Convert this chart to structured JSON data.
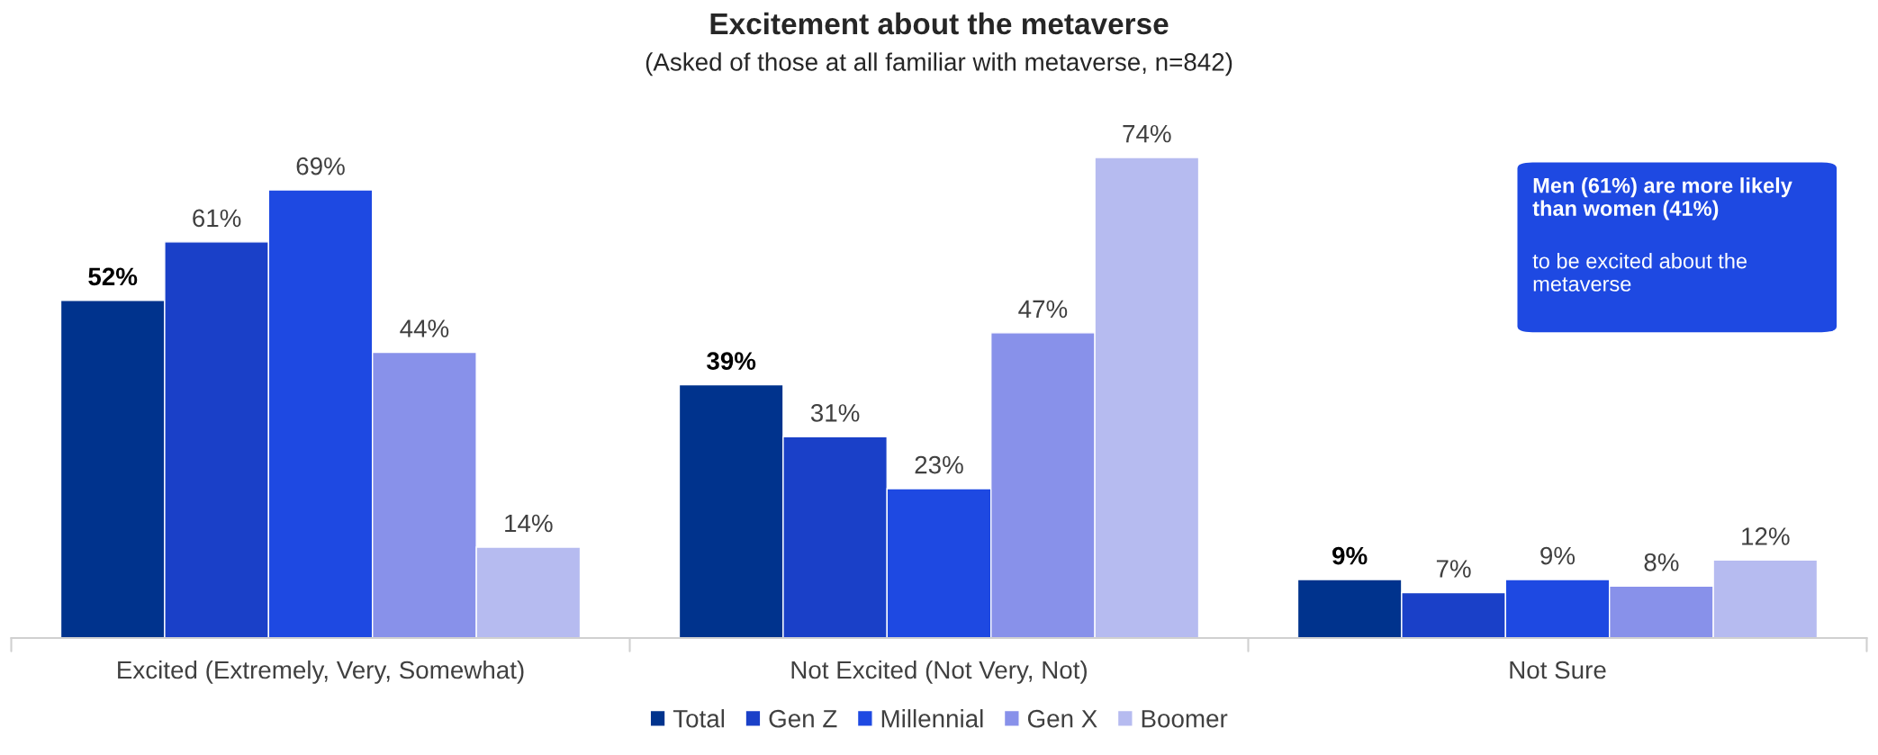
{
  "chart_data": {
    "type": "bar",
    "title": "Excitement about the metaverse",
    "subtitle": "(Asked of those at all familiar with metaverse, n=842)",
    "categories": [
      "Excited (Extremely, Very, Somewhat)",
      "Not Excited (Not Very, Not)",
      "Not Sure"
    ],
    "series": [
      {
        "name": "Total",
        "color": "#00338d",
        "values": [
          52,
          39,
          9
        ],
        "value_labels": [
          "52%",
          "39%",
          "9%"
        ]
      },
      {
        "name": "Gen Z",
        "color": "#1a40c8",
        "values": [
          61,
          31,
          7
        ],
        "value_labels": [
          "61%",
          "31%",
          "7%"
        ]
      },
      {
        "name": "Millennial",
        "color": "#1e49e2",
        "values": [
          69,
          23,
          9
        ],
        "value_labels": [
          "69%",
          "23%",
          "9%"
        ]
      },
      {
        "name": "Gen X",
        "color": "#8891ea",
        "values": [
          44,
          47,
          8
        ],
        "value_labels": [
          "44%",
          "47%",
          "8%"
        ]
      },
      {
        "name": "Boomer",
        "color": "#b6bbf0",
        "values": [
          14,
          74,
          12
        ],
        "value_labels": [
          "14%",
          "74%",
          "12%"
        ]
      }
    ],
    "annotations": [
      "Men (61%) are more likely than women (41%)",
      "to be excited about the metaverse"
    ],
    "legend": "bottom",
    "grid": false
  }
}
